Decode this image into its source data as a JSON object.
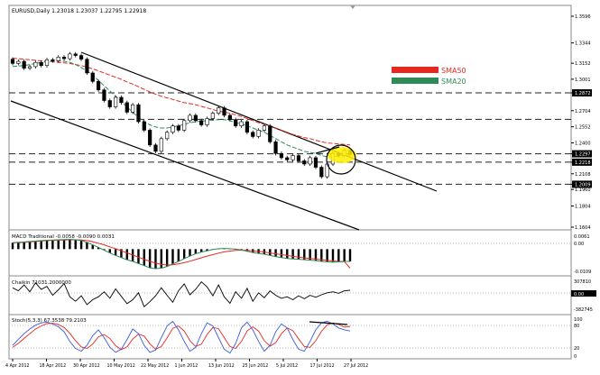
{
  "main": {
    "header": "EURUSD,Daily  1.23018 1.23037 1.22795 1.22918",
    "price_axis": [
      "1.3596",
      "1.3344",
      "1.3152",
      "1.3001",
      "1.2872",
      "1.2704",
      "1.2552",
      "1.2400",
      "1.2297",
      "1.2218",
      "1.2108",
      "1.2009",
      "1.1960",
      "1.1804",
      "1.1604"
    ],
    "highlight_labels": [
      "1.2872",
      "1.2622",
      "1.2297",
      "1.2218",
      "1.2009"
    ],
    "legend": [
      {
        "label": "SMA50",
        "color": "#e8281e"
      },
      {
        "label": "SMA20",
        "color": "#2e8b57"
      }
    ]
  },
  "macd": {
    "label": "MACD Traditional -0.0058 -0.0090 0.0031",
    "axis": [
      "0.0061",
      "0.00",
      "-0.0109"
    ]
  },
  "chaikin": {
    "label": "Chaikin 71031.2000000",
    "axis": [
      "307810",
      "0.00",
      "-382745"
    ]
  },
  "stoch": {
    "label": "Stoch(5,3,3) 67.3538 79.2103",
    "axis": [
      "100",
      "80",
      "20",
      "0"
    ]
  },
  "x_axis": [
    "4 Apr 2012",
    "18 Apr 2012",
    "30 Apr 2012",
    "10 May 2012",
    "22 May 2012",
    "1 Jun 2012",
    "13 Jun 2012",
    "25 Jun 2012",
    "5 Jul 2012",
    "17 Jul 2012",
    "27 Jul 2012"
  ],
  "chart_data": {
    "type": "candlestick",
    "symbol": "EURUSD",
    "timeframe": "Daily",
    "ohlc_last": {
      "open": 1.23018,
      "high": 1.23037,
      "low": 1.22795,
      "close": 1.22918
    },
    "closes": [
      1.315,
      1.317,
      1.3105,
      1.312,
      1.316,
      1.313,
      1.3185,
      1.3175,
      1.321,
      1.3195,
      1.324,
      1.3225,
      1.319,
      1.306,
      1.298,
      1.29,
      1.28,
      1.274,
      1.283,
      1.278,
      1.269,
      1.276,
      1.26,
      1.252,
      1.238,
      1.232,
      1.244,
      1.25,
      1.256,
      1.252,
      1.261,
      1.266,
      1.261,
      1.257,
      1.263,
      1.268,
      1.273,
      1.266,
      1.262,
      1.256,
      1.26,
      1.25,
      1.246,
      1.252,
      1.256,
      1.241,
      1.23,
      1.226,
      1.224,
      1.228,
      1.223,
      1.22,
      1.226,
      1.217,
      1.208,
      1.22,
      1.23,
      1.228,
      1.233,
      1.2292
    ],
    "sma50": [
      1.32,
      1.3195,
      1.319,
      1.3185,
      1.318,
      1.3175,
      1.317,
      1.3165,
      1.316,
      1.3155,
      1.315,
      1.314,
      1.313,
      1.3115,
      1.31,
      1.308,
      1.306,
      1.304,
      1.302,
      1.3,
      1.2975,
      1.2955,
      1.293,
      1.2905,
      1.288,
      1.286,
      1.284,
      1.2825,
      1.281,
      1.2795,
      1.278,
      1.277,
      1.276,
      1.2745,
      1.273,
      1.2715,
      1.27,
      1.269,
      1.268,
      1.2665,
      1.265,
      1.263,
      1.261,
      1.259,
      1.2575,
      1.256,
      1.254,
      1.252,
      1.25,
      1.248,
      1.2465,
      1.245,
      1.244,
      1.2425,
      1.241,
      1.24,
      1.2395,
      1.239,
      1.2385,
      1.238
    ],
    "sma20": [
      1.312,
      1.3125,
      1.313,
      1.314,
      1.315,
      1.316,
      1.3165,
      1.317,
      1.3175,
      1.317,
      1.316,
      1.314,
      1.311,
      1.308,
      1.304,
      1.299,
      1.294,
      1.289,
      1.284,
      1.279,
      1.274,
      1.269,
      1.264,
      1.26,
      1.257,
      1.255,
      1.254,
      1.254,
      1.255,
      1.256,
      1.2575,
      1.259,
      1.26,
      1.2605,
      1.261,
      1.2615,
      1.262,
      1.262,
      1.261,
      1.259,
      1.258,
      1.256,
      1.254,
      1.252,
      1.25,
      1.247,
      1.244,
      1.241,
      1.238,
      1.236,
      1.234,
      1.232,
      1.231,
      1.23,
      1.228,
      1.227,
      1.227,
      1.2275,
      1.228,
      1.2285
    ],
    "horizontal_levels": [
      1.2872,
      1.2622,
      1.2297,
      1.2218,
      1.2009
    ],
    "macd_hist": [
      0.003,
      0.0032,
      0.0034,
      0.0036,
      0.0038,
      0.004,
      0.0042,
      0.0043,
      0.0044,
      0.0045,
      0.0046,
      0.0044,
      0.004,
      0.0032,
      0.002,
      0.0008,
      -0.0005,
      -0.0018,
      -0.003,
      -0.004,
      -0.005,
      -0.0058,
      -0.0068,
      -0.0078,
      -0.0088,
      -0.0092,
      -0.009,
      -0.0082,
      -0.007,
      -0.0058,
      -0.0045,
      -0.0033,
      -0.0022,
      -0.0014,
      -0.0008,
      -0.0002,
      0.0002,
      0.0003,
      0.0002,
      0.0,
      -0.0004,
      -0.001,
      -0.0016,
      -0.002,
      -0.0024,
      -0.003,
      -0.0036,
      -0.004,
      -0.0044,
      -0.0046,
      -0.0048,
      -0.005,
      -0.0052,
      -0.0054,
      -0.0058,
      -0.006,
      -0.0062,
      -0.006,
      -0.0058,
      -0.0058
    ],
    "macd_signal": [
      0.003,
      0.0031,
      0.0032,
      0.0034,
      0.0036,
      0.0038,
      0.004,
      0.0041,
      0.0042,
      0.0043,
      0.0044,
      0.0044,
      0.0043,
      0.004,
      0.0035,
      0.0028,
      0.002,
      0.0011,
      0.0002,
      -0.0008,
      -0.0018,
      -0.0028,
      -0.0038,
      -0.0048,
      -0.0058,
      -0.0066,
      -0.0072,
      -0.0075,
      -0.0074,
      -0.007,
      -0.0064,
      -0.0057,
      -0.0049,
      -0.0041,
      -0.0033,
      -0.0026,
      -0.0019,
      -0.0013,
      -0.0009,
      -0.0006,
      -0.0005,
      -0.0006,
      -0.0008,
      -0.0011,
      -0.0014,
      -0.0018,
      -0.0022,
      -0.0026,
      -0.003,
      -0.0034,
      -0.0038,
      -0.0041,
      -0.0044,
      -0.0047,
      -0.005,
      -0.0053,
      -0.0056,
      -0.0058,
      -0.0059,
      -0.009
    ],
    "chaikin": [
      120000,
      60000,
      180000,
      40000,
      220000,
      90000,
      150000,
      -30000,
      80000,
      210000,
      -60000,
      -150000,
      -40000,
      -220000,
      -120000,
      -60000,
      40000,
      -90000,
      100000,
      -50000,
      -200000,
      -120000,
      20000,
      -260000,
      -160000,
      -40000,
      120000,
      -30000,
      -170000,
      60000,
      200000,
      -20000,
      90000,
      240000,
      140000,
      -40000,
      180000,
      -60000,
      -190000,
      40000,
      -90000,
      110000,
      -150000,
      20000,
      -80000,
      60000,
      -30000,
      -90000,
      -60000,
      -120000,
      -40000,
      -100000,
      -30000,
      -70000,
      -20000,
      20000,
      40000,
      10000,
      60000,
      71031
    ],
    "stoch_k": [
      30,
      45,
      60,
      72,
      82,
      88,
      90,
      85,
      78,
      65,
      40,
      22,
      15,
      30,
      55,
      70,
      50,
      25,
      12,
      20,
      45,
      72,
      60,
      30,
      12,
      18,
      50,
      80,
      92,
      70,
      40,
      15,
      25,
      60,
      88,
      80,
      50,
      20,
      10,
      35,
      75,
      90,
      70,
      40,
      15,
      30,
      65,
      85,
      75,
      45,
      20,
      15,
      40,
      70,
      88,
      92,
      85,
      75,
      70,
      67
    ],
    "stoch_d": [
      25,
      35,
      48,
      60,
      72,
      80,
      86,
      87,
      84,
      76,
      61,
      42,
      26,
      22,
      33,
      52,
      58,
      48,
      29,
      19,
      26,
      46,
      59,
      54,
      34,
      20,
      27,
      49,
      74,
      80,
      67,
      42,
      27,
      33,
      58,
      76,
      73,
      50,
      27,
      22,
      40,
      67,
      78,
      67,
      42,
      28,
      37,
      60,
      75,
      68,
      47,
      27,
      25,
      42,
      66,
      83,
      88,
      84,
      77,
      79
    ]
  }
}
